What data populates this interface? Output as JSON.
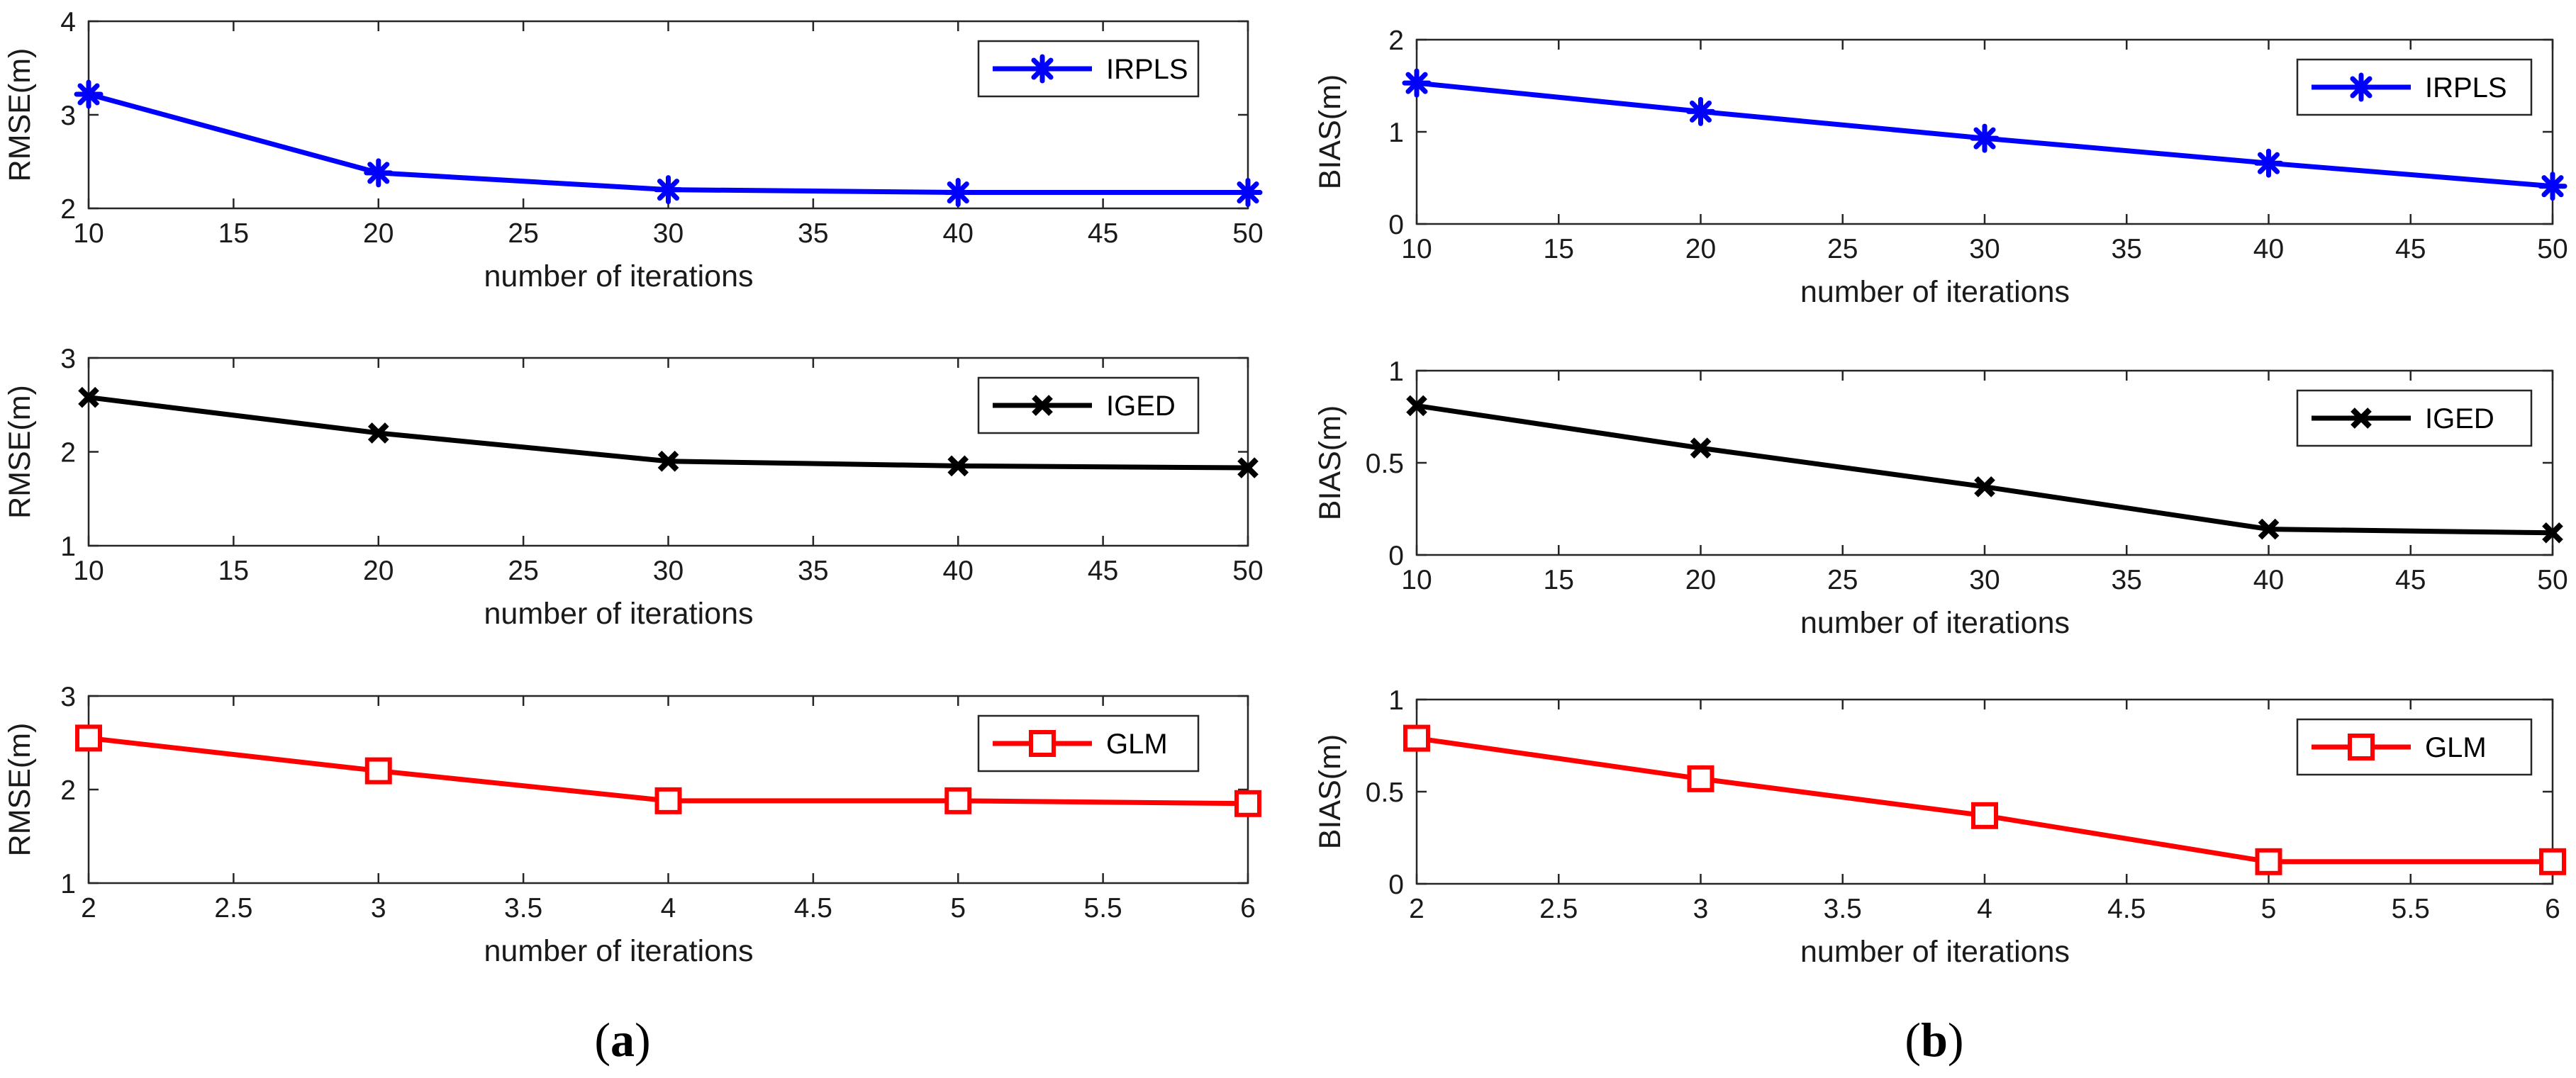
{
  "figure": {
    "panel_labels": [
      {
        "open": "(",
        "letter": "a",
        "close": ")"
      },
      {
        "open": "(",
        "letter": "b",
        "close": ")"
      }
    ]
  },
  "chart_data": [
    {
      "type": "line",
      "panel": "a",
      "row": 0,
      "x": [
        10,
        20,
        30,
        40,
        50
      ],
      "series": [
        {
          "name": "IRPLS",
          "values": [
            3.22,
            2.38,
            2.2,
            2.17,
            2.17
          ],
          "color": "#0000ff",
          "marker": "asterisk"
        }
      ],
      "xlabel": "number of iterations",
      "ylabel": "RMSE(m)",
      "xlim": [
        10,
        50
      ],
      "ylim": [
        2,
        4
      ],
      "xticks": [
        10,
        15,
        20,
        25,
        30,
        35,
        40,
        45,
        50
      ],
      "yticks": [
        2,
        3,
        4
      ],
      "legend_position": "top-right"
    },
    {
      "type": "line",
      "panel": "a",
      "row": 1,
      "x": [
        10,
        20,
        30,
        40,
        50
      ],
      "series": [
        {
          "name": "IGED",
          "values": [
            2.58,
            2.2,
            1.9,
            1.85,
            1.83
          ],
          "color": "#000000",
          "marker": "x"
        }
      ],
      "xlabel": "number of iterations",
      "ylabel": "RMSE(m)",
      "xlim": [
        10,
        50
      ],
      "ylim": [
        1,
        3
      ],
      "xticks": [
        10,
        15,
        20,
        25,
        30,
        35,
        40,
        45,
        50
      ],
      "yticks": [
        1,
        2,
        3
      ],
      "legend_position": "top-right"
    },
    {
      "type": "line",
      "panel": "a",
      "row": 2,
      "x": [
        2,
        3,
        4,
        5,
        6
      ],
      "series": [
        {
          "name": "GLM",
          "values": [
            2.55,
            2.2,
            1.88,
            1.88,
            1.85
          ],
          "color": "#ff0000",
          "marker": "square"
        }
      ],
      "xlabel": "number of iterations",
      "ylabel": "RMSE(m)",
      "xlim": [
        2,
        6
      ],
      "ylim": [
        1,
        3
      ],
      "xticks": [
        2,
        2.5,
        3,
        3.5,
        4,
        4.5,
        5,
        5.5,
        6
      ],
      "yticks": [
        1,
        2,
        3
      ],
      "legend_position": "top-right"
    },
    {
      "type": "line",
      "panel": "b",
      "row": 0,
      "x": [
        10,
        20,
        30,
        40,
        50
      ],
      "series": [
        {
          "name": "IRPLS",
          "values": [
            1.53,
            1.22,
            0.93,
            0.66,
            0.41
          ],
          "color": "#0000ff",
          "marker": "asterisk"
        }
      ],
      "xlabel": "number of iterations",
      "ylabel": "BIAS(m)",
      "xlim": [
        10,
        50
      ],
      "ylim": [
        0,
        2
      ],
      "xticks": [
        10,
        15,
        20,
        25,
        30,
        35,
        40,
        45,
        50
      ],
      "yticks": [
        0,
        1,
        2
      ],
      "legend_position": "top-right"
    },
    {
      "type": "line",
      "panel": "b",
      "row": 1,
      "x": [
        10,
        20,
        30,
        40,
        50
      ],
      "series": [
        {
          "name": "IGED",
          "values": [
            0.81,
            0.58,
            0.37,
            0.14,
            0.12
          ],
          "color": "#000000",
          "marker": "x"
        }
      ],
      "xlabel": "number of iterations",
      "ylabel": "BIAS(m)",
      "xlim": [
        10,
        50
      ],
      "ylim": [
        0,
        1
      ],
      "xticks": [
        10,
        15,
        20,
        25,
        30,
        35,
        40,
        45,
        50
      ],
      "yticks": [
        0,
        0.5,
        1
      ],
      "legend_position": "top-right"
    },
    {
      "type": "line",
      "panel": "b",
      "row": 2,
      "x": [
        2,
        3,
        4,
        5,
        6
      ],
      "series": [
        {
          "name": "GLM",
          "values": [
            0.79,
            0.57,
            0.37,
            0.12,
            0.12
          ],
          "color": "#ff0000",
          "marker": "square"
        }
      ],
      "xlabel": "number of iterations",
      "ylabel": "BIAS(m)",
      "xlim": [
        2,
        6
      ],
      "ylim": [
        0,
        1
      ],
      "xticks": [
        2,
        2.5,
        3,
        3.5,
        4,
        4.5,
        5,
        5.5,
        6
      ],
      "yticks": [
        0,
        0.5,
        1
      ],
      "legend_position": "top-right"
    }
  ]
}
